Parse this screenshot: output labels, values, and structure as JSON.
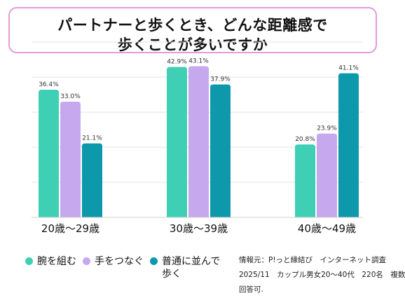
{
  "title": {
    "line1": "パートナーと歩くとき、どんな距離感で",
    "line2": "歩くことが多いですか"
  },
  "chart_data": {
    "type": "bar",
    "categories": [
      "20歳〜29歳",
      "30歳〜39歳",
      "40歳〜49歳"
    ],
    "series": [
      {
        "name": "腕を組む",
        "values": [
          36.4,
          42.9,
          20.8
        ],
        "color": "#3fcfb4"
      },
      {
        "name": "手をつなぐ",
        "values": [
          33.0,
          43.1,
          23.9
        ],
        "color": "#c6a8ef"
      },
      {
        "name": "普通に並んで歩く",
        "values": [
          21.1,
          37.9,
          41.1
        ],
        "color": "#0d98ac"
      }
    ],
    "value_suffix": "%",
    "ylim": [
      0,
      50
    ],
    "grid": true,
    "legend_position": "bottom-left"
  },
  "legend": {
    "items": [
      {
        "label": "腕を組む",
        "color": "#3fcfb4"
      },
      {
        "label": "手をつなぐ",
        "color": "#c6a8ef"
      },
      {
        "label_line1": "普通に並んで",
        "label_line2": "歩く",
        "color": "#0d98ac"
      }
    ]
  },
  "source": {
    "line1": "情報元：P!っと縁結び　インターネット調査",
    "line2": "2025/11　カップル男女20〜40代　220名　複数",
    "line3": "回答可."
  }
}
